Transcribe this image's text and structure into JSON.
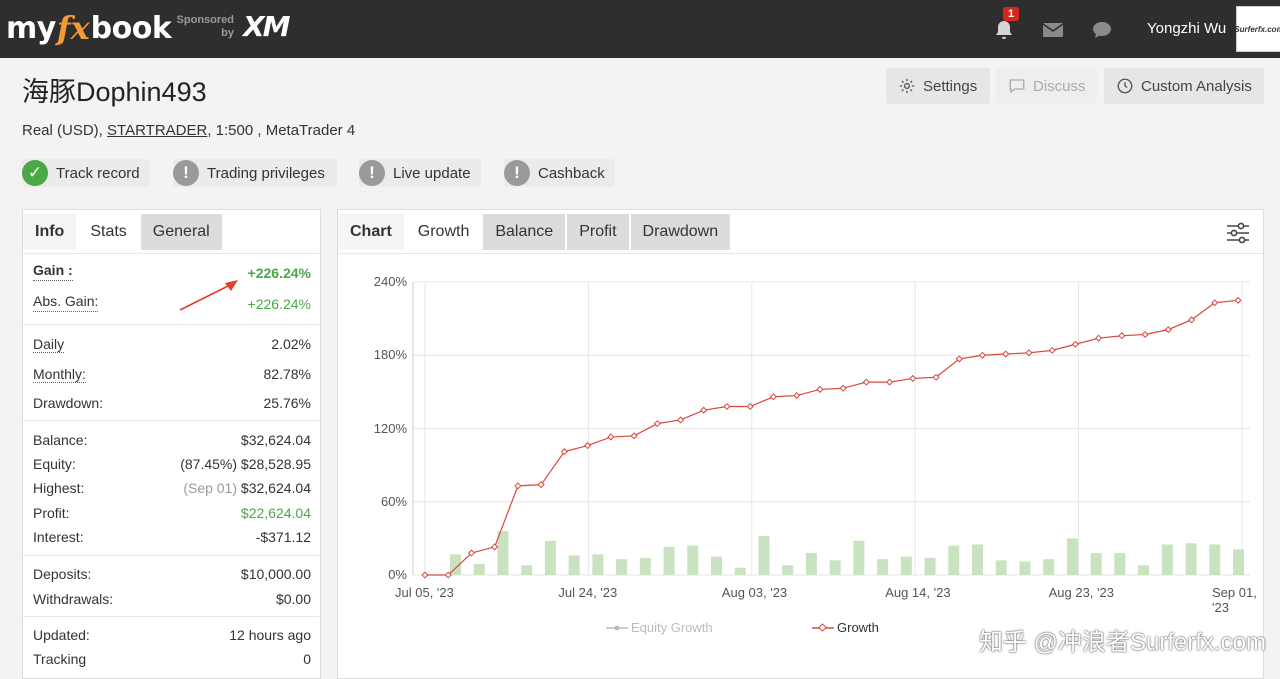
{
  "header": {
    "logo_my": "my",
    "logo_fx": "fx",
    "logo_book": "book",
    "sponsored_line1": "Sponsored",
    "sponsored_line2": "by",
    "sponsor_brand": "XM",
    "notification_count": "1",
    "username": "Yongzhi Wu",
    "avatar_text": "Surferfx.com"
  },
  "account": {
    "title": "海豚Dophin493",
    "type": "Real (USD),",
    "broker": "STARTRADER",
    "details": ", 1:500 , MetaTrader 4"
  },
  "toolbar": {
    "settings": "Settings",
    "discuss": "Discuss",
    "custom_analysis": "Custom Analysis"
  },
  "badges": [
    {
      "label": "Track record",
      "status": "verified",
      "color": "#4aa845"
    },
    {
      "label": "Trading privileges",
      "status": "unverified",
      "color": "#9a9a9a"
    },
    {
      "label": "Live update",
      "status": "unverified",
      "color": "#9a9a9a"
    },
    {
      "label": "Cashback",
      "status": "unverified",
      "color": "#9a9a9a"
    }
  ],
  "stats_tabs": [
    "Info",
    "Stats",
    "General"
  ],
  "stats": {
    "gain": {
      "label": "Gain :",
      "value": "+226.24%"
    },
    "abs_gain": {
      "label": "Abs. Gain:",
      "value": "+226.24%"
    },
    "daily": {
      "label": "Daily",
      "value": "2.02%"
    },
    "monthly": {
      "label": "Monthly:",
      "value": "82.78%"
    },
    "drawdown": {
      "label": "Drawdown:",
      "value": "25.76%"
    },
    "balance": {
      "label": "Balance:",
      "value": "$32,624.04"
    },
    "equity": {
      "label": "Equity:",
      "pct": "(87.45%)",
      "value": "$28,528.95"
    },
    "highest": {
      "label": "Highest:",
      "date": "(Sep 01)",
      "value": "$32,624.04"
    },
    "profit": {
      "label": "Profit:",
      "value": "$22,624.04"
    },
    "interest": {
      "label": "Interest:",
      "value": "-$371.12"
    },
    "deposits": {
      "label": "Deposits:",
      "value": "$10,000.00"
    },
    "withdrawals": {
      "label": "Withdrawals:",
      "value": "$0.00"
    },
    "updated": {
      "label": "Updated:",
      "value": "12 hours ago"
    },
    "tracking": {
      "label": "Tracking",
      "value": "0"
    }
  },
  "chart_tabs": [
    "Chart",
    "Growth",
    "Balance",
    "Profit",
    "Drawdown"
  ],
  "chart_data": {
    "type": "line",
    "x_tick_labels": [
      "Jul 05, '23",
      "Jul 24, '23",
      "Aug 03, '23",
      "Aug 14, '23",
      "Aug 23, '23",
      "Sep 01, '23"
    ],
    "y_tick_labels": [
      "0%",
      "60%",
      "120%",
      "180%",
      "240%"
    ],
    "ylim": [
      0,
      240
    ],
    "grid": true,
    "legend_position": "bottom",
    "series": [
      {
        "name": "Equity Growth",
        "color": "#bbbbbb",
        "values": []
      },
      {
        "name": "Growth",
        "color": "#d9483b",
        "values": [
          0,
          0,
          18,
          23,
          73,
          74,
          101,
          106,
          113,
          114,
          124,
          127,
          135,
          138,
          138,
          146,
          147,
          152,
          153,
          158,
          158,
          161,
          162,
          177,
          180,
          181,
          182,
          184,
          189,
          194,
          196,
          197,
          201,
          209,
          223,
          225
        ]
      }
    ],
    "bars": {
      "color": "#c9e3c0",
      "values": [
        17,
        9,
        36,
        8,
        28,
        16,
        17,
        13,
        14,
        23,
        24,
        15,
        6,
        32,
        8,
        18,
        12,
        28,
        13,
        15,
        14,
        24,
        25,
        12,
        11,
        13,
        30,
        18,
        18,
        8,
        25,
        26,
        25,
        21
      ]
    }
  },
  "watermark": "知乎 @冲浪者Surferfx.com"
}
